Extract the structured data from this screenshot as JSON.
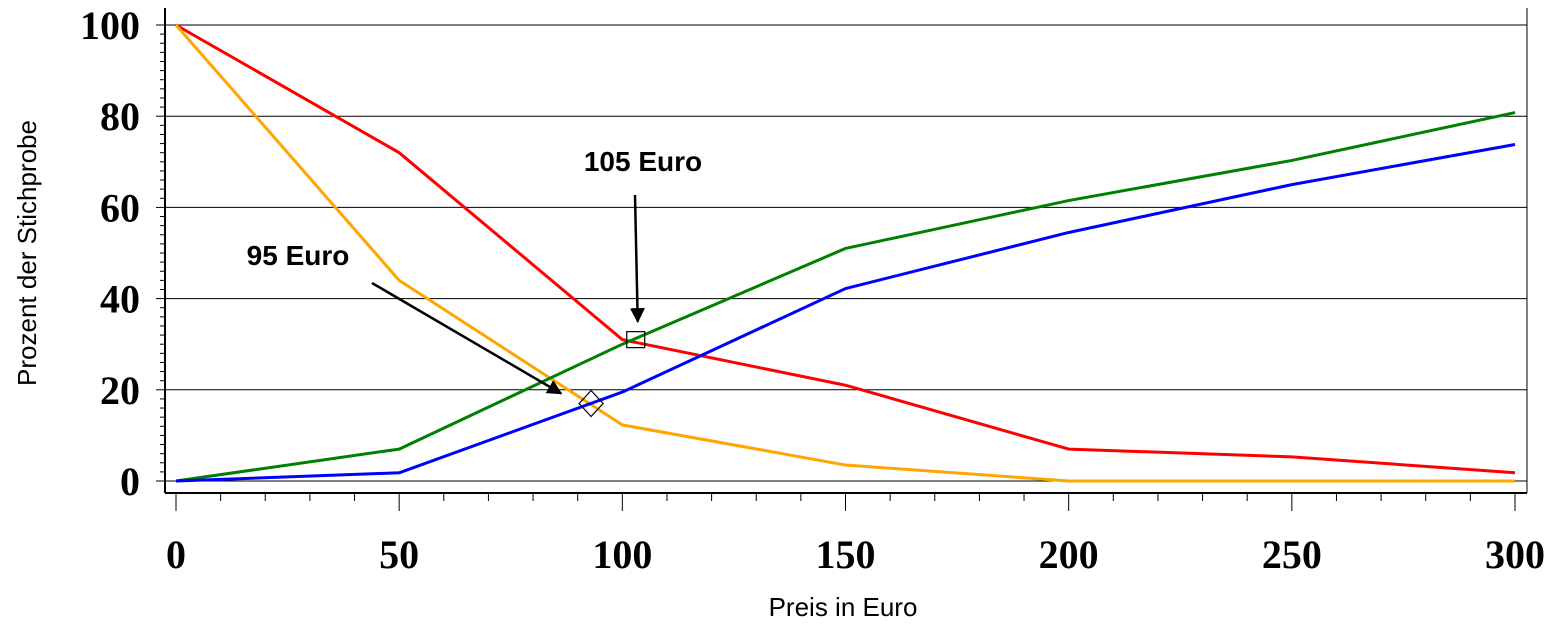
{
  "chart_data": {
    "type": "line",
    "xlabel": "Preis in Euro",
    "ylabel": "Prozent der Stichprobe",
    "xlim": [
      0,
      300
    ],
    "ylim": [
      0,
      100
    ],
    "x_ticks": [
      "0",
      "50",
      "100",
      "150",
      "200",
      "250",
      "300"
    ],
    "y_ticks": [
      "0",
      "20",
      "40",
      "60",
      "80",
      "100"
    ],
    "grid": "horizontal",
    "x": [
      0,
      50,
      100,
      150,
      200,
      250,
      300
    ],
    "series": [
      {
        "color": "#ff0000",
        "values": [
          100,
          72,
          31,
          21,
          7,
          5.3,
          1.8
        ]
      },
      {
        "color": "#ffa500",
        "values": [
          100,
          44,
          12.3,
          3.5,
          0,
          0,
          0
        ]
      },
      {
        "color": "#008000",
        "values": [
          0,
          7,
          30,
          51,
          61.5,
          70.3,
          80.8
        ]
      },
      {
        "color": "#0000ff",
        "values": [
          0,
          1.8,
          19.5,
          42.2,
          54.5,
          65,
          73.8
        ]
      }
    ],
    "annotations": [
      {
        "text": "105 Euro",
        "marker": "square",
        "point": [
          103,
          31
        ]
      },
      {
        "text": "95 Euro",
        "marker": "diamond",
        "point": [
          93,
          17
        ]
      }
    ]
  }
}
